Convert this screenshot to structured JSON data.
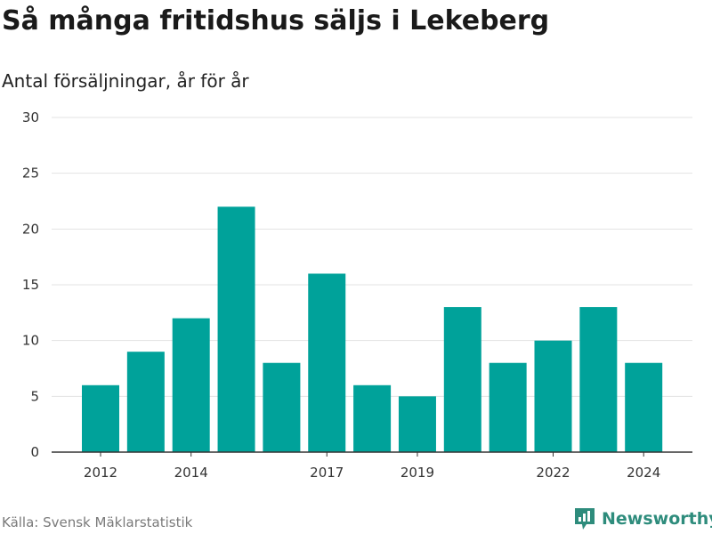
{
  "title": "Så många fritidshus säljs i Lekeberg",
  "subtitle": "Antal försäljningar, år för år",
  "source": "Källa: Svensk Mäklarstatistik",
  "brand": {
    "name": "Newsworthy",
    "icon": "newsworthy-logo-icon"
  },
  "colors": {
    "bar": "#00a29a",
    "brand": "#2e8c7c",
    "grid": "#e3e3e3",
    "axis": "#333333"
  },
  "chart_data": {
    "type": "bar",
    "x": [
      2012,
      2013,
      2014,
      2015,
      2016,
      2017,
      2018,
      2019,
      2020,
      2021,
      2022,
      2023,
      2024
    ],
    "values": [
      6,
      9,
      12,
      22,
      8,
      16,
      6,
      5,
      13,
      8,
      10,
      13,
      8
    ],
    "x_tick_labels": [
      "2012",
      "2014",
      "2017",
      "2019",
      "2022",
      "2024"
    ],
    "y_ticks": [
      0,
      5,
      10,
      15,
      20,
      25,
      30
    ],
    "ylim": [
      0,
      30
    ],
    "grid": true,
    "legend": "none"
  }
}
